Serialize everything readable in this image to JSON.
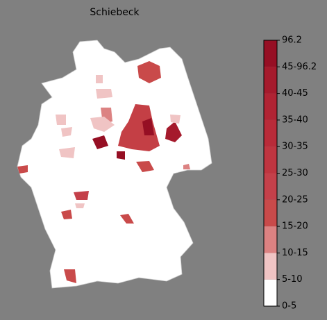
{
  "title": "Schiebeck",
  "legend": {
    "labels": [
      "0-5",
      "5-10",
      "10-15",
      "15-20",
      "20-25",
      "25-30",
      "30-35",
      "35-40",
      "40-45",
      "45-96.2",
      "96.2"
    ],
    "colors": [
      "#ffffff",
      "#f0c4c4",
      "#dc8282",
      "#c94a4a",
      "#c4404a",
      "#bf3540",
      "#b92b39",
      "#b02333",
      "#a51a2c",
      "#960f24"
    ]
  }
}
